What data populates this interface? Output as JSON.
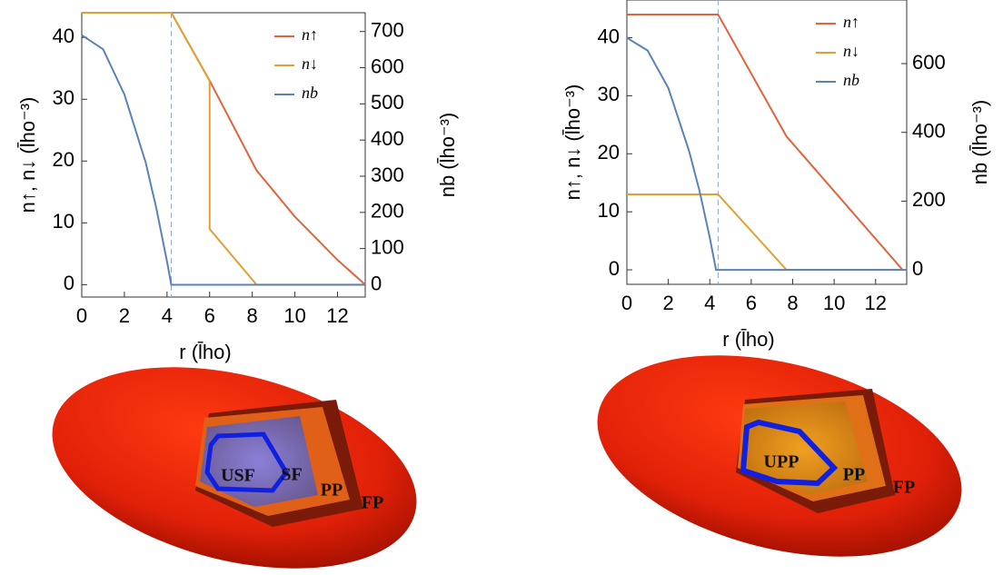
{
  "chart_data": [
    {
      "type": "line",
      "xlabel": "r (l̄ho)",
      "ylabel": "n↑, n↓ (l̄ho⁻³)",
      "y2label": "nb (l̄ho⁻³)",
      "xlim": [
        0,
        13.3
      ],
      "xticks": [
        0,
        2,
        4,
        6,
        8,
        10,
        12
      ],
      "ylim": [
        -2,
        44
      ],
      "yticks": [
        0,
        10,
        20,
        30,
        40
      ],
      "y2lim": [
        -34,
        752
      ],
      "y2ticks": [
        0,
        100,
        200,
        300,
        400,
        500,
        600,
        700
      ],
      "vline": 4.2,
      "legend": "upper right",
      "series": [
        {
          "name": "n↑",
          "color": "#e0643c",
          "x": [
            0,
            4.2,
            6,
            8.2,
            10,
            12,
            13.3
          ],
          "values": [
            44,
            44,
            33,
            18.5,
            11,
            4,
            0
          ]
        },
        {
          "name": "n↓",
          "color": "#e0a032",
          "x": [
            0,
            4.2,
            6,
            6,
            8.2,
            13.3
          ],
          "values": [
            44,
            44,
            33,
            9,
            0,
            0
          ]
        },
        {
          "name": "nb",
          "color": "#5a82b8",
          "axis": "y2",
          "x": [
            0,
            1,
            2,
            3,
            3.5,
            4,
            4.2,
            13.3
          ],
          "values": [
            690,
            651,
            526,
            338,
            211,
            64,
            0,
            0
          ]
        }
      ]
    },
    {
      "type": "line",
      "xlabel": "r (l̄ho)",
      "ylabel": "n↑, n↓ (l̄ho⁻³)",
      "y2label": "nb (l̄ho⁻³)",
      "xlim": [
        0,
        13.5
      ],
      "xticks": [
        0,
        2,
        4,
        6,
        8,
        10,
        12
      ],
      "ylim": [
        -2.5,
        46.5
      ],
      "yticks": [
        0,
        10,
        20,
        30,
        40
      ],
      "y2lim": [
        -42,
        785
      ],
      "y2ticks": [
        0,
        200,
        400,
        600
      ],
      "vline": 4.4,
      "legend": "upper right",
      "series": [
        {
          "name": "n↑",
          "color": "#e0643c",
          "x": [
            0,
            4.4,
            7.7,
            13.3
          ],
          "values": [
            44,
            44,
            23,
            0
          ]
        },
        {
          "name": "n↓",
          "color": "#e0a032",
          "x": [
            0,
            4.4,
            7.7,
            13.3
          ],
          "values": [
            13,
            13,
            0,
            0
          ]
        },
        {
          "name": "nb",
          "color": "#5a82b8",
          "axis": "y2",
          "x": [
            0,
            1,
            2,
            3,
            3.5,
            4,
            4.3,
            13.5
          ],
          "values": [
            675,
            638,
            529,
            346,
            231,
            94,
            0,
            0
          ]
        }
      ]
    }
  ],
  "renderings": [
    {
      "labels": [
        "USF",
        "SF",
        "PP",
        "FP"
      ]
    },
    {
      "labels": [
        "UPP",
        "PP",
        "FP"
      ]
    }
  ]
}
